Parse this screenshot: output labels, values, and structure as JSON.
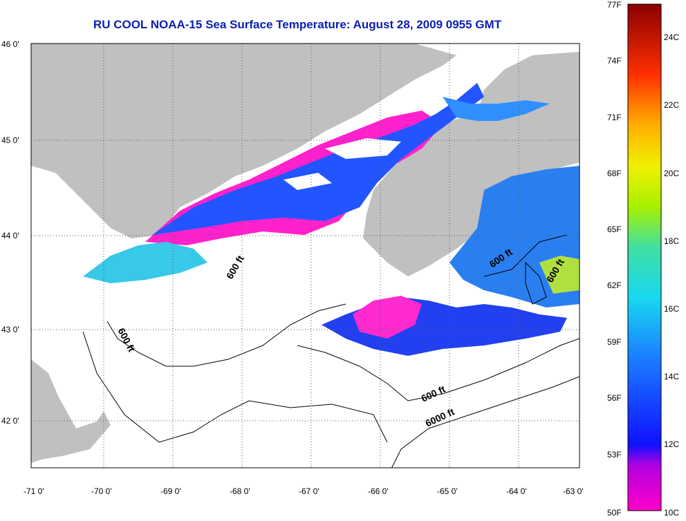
{
  "title": "RU COOL  NOAA-15  Sea Surface Temperature:  August 28, 2009 0955 GMT",
  "lat_labels": [
    "46 0'",
    "45 0'",
    "44 0'",
    "43 0'",
    "42 0'"
  ],
  "lon_labels": [
    "-71 0'",
    "-70 0'",
    "-69 0'",
    "-68 0'",
    "-67 0'",
    "-66 0'",
    "-65 0'",
    "-64 0'",
    "-63 0'"
  ],
  "contour_labels": [
    "600 ft",
    "600 ft",
    "600 ft",
    "600 ft",
    "600 ft",
    "6000 ft"
  ],
  "colorbar": {
    "fahrenheit": [
      "77F",
      "74F",
      "71F",
      "68F",
      "65F",
      "62F",
      "59F",
      "56F",
      "53F",
      "50F"
    ],
    "celsius": [
      "24C",
      "22C",
      "20C",
      "18C",
      "16C",
      "14C",
      "12C",
      "10C"
    ]
  },
  "colors": {
    "land": "#c0c0c0",
    "title": "#0a1eb4",
    "no_data": "#ffffff",
    "warm": "#8b0000",
    "cold": "#ff00cc"
  }
}
